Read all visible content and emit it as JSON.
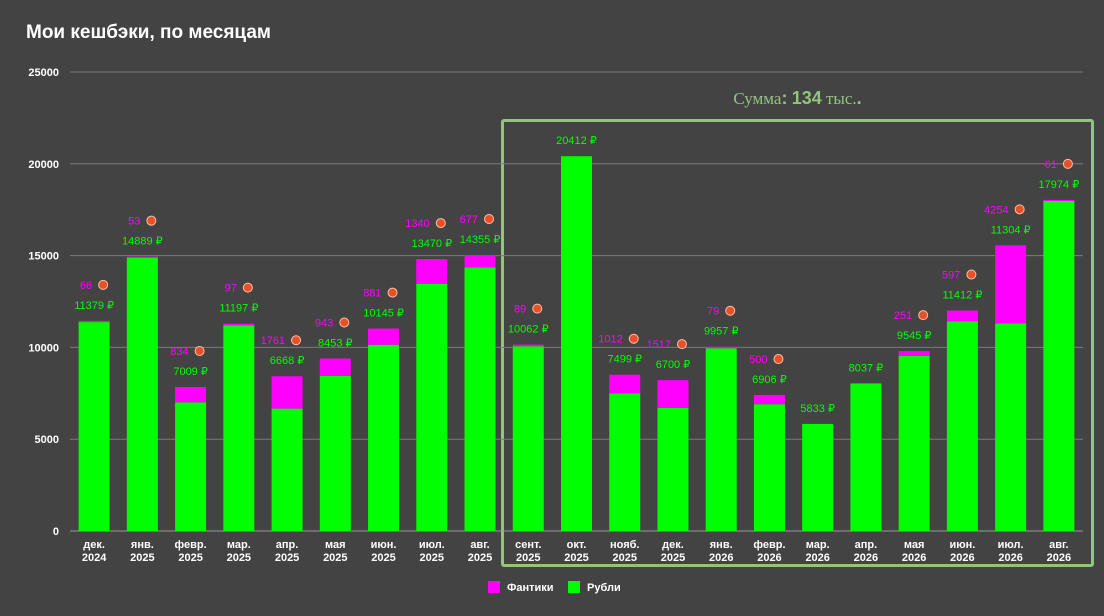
{
  "title": "Мои кешбэки, по месяцам",
  "annotation": {
    "prefix": "Сумма",
    "colon": ":",
    "value": "134",
    "suffix": "тыс."
  },
  "colors": {
    "background": "#434343",
    "grid": "#7a7a7a",
    "text": "#ffffff",
    "rubles": "#00ff00",
    "fantiki": "#ff00ff",
    "coin": "#e8502a",
    "box": "#93c47d"
  },
  "chart_data": {
    "type": "bar",
    "stacked": true,
    "title": "Мои кешбэки, по месяцам",
    "categories": [
      [
        "дек.",
        "2024"
      ],
      [
        "янв.",
        "2025"
      ],
      [
        "февр.",
        "2025"
      ],
      [
        "мар.",
        "2025"
      ],
      [
        "апр.",
        "2025"
      ],
      [
        "мая",
        "2025"
      ],
      [
        "июн.",
        "2025"
      ],
      [
        "июл.",
        "2025"
      ],
      [
        "авг.",
        "2025"
      ],
      [
        "сент.",
        "2025"
      ],
      [
        "окт.",
        "2025"
      ],
      [
        "нояб.",
        "2025"
      ],
      [
        "дек.",
        "2025"
      ],
      [
        "янв.",
        "2026"
      ],
      [
        "февр.",
        "2026"
      ],
      [
        "мар.",
        "2026"
      ],
      [
        "апр.",
        "2026"
      ],
      [
        "мая",
        "2026"
      ],
      [
        "июн.",
        "2026"
      ],
      [
        "июл.",
        "2026"
      ],
      [
        "авг.",
        "2026"
      ]
    ],
    "series": [
      {
        "name": "Рубли",
        "color": "#00ff00",
        "values": [
          11379,
          14889,
          7009,
          11197,
          6668,
          8453,
          10145,
          13470,
          14355,
          10062,
          20412,
          7499,
          6700,
          9957,
          6906,
          5833,
          8037,
          9545,
          11412,
          11304,
          17974
        ],
        "labels": [
          "11379 ₽",
          "14889 ₽",
          "7009 ₽",
          "11197 ₽",
          "6668 ₽",
          "8453 ₽",
          "10145 ₽",
          "13470 ₽",
          "14355 ₽",
          "10062 ₽",
          "20412 ₽",
          "7499 ₽",
          "6700 ₽",
          "9957 ₽",
          "6906 ₽",
          "5833 ₽",
          "8037 ₽",
          "9545 ₽",
          "11412 ₽",
          "11304 ₽",
          "17974 ₽"
        ]
      },
      {
        "name": "Фантики",
        "color": "#ff00ff",
        "values": [
          66,
          53,
          834,
          97,
          1761,
          943,
          881,
          1340,
          677,
          89,
          0,
          1012,
          1517,
          79,
          500,
          0,
          0,
          251,
          597,
          4254,
          61
        ],
        "labels": [
          "66",
          "53",
          "834",
          "97",
          "1761",
          "943",
          "881",
          "1340",
          "677",
          "89",
          "",
          "1012",
          "1517",
          "79",
          "500",
          "",
          "",
          "251",
          "597",
          "4254",
          "61"
        ]
      }
    ],
    "ylim": [
      0,
      25000
    ],
    "yticks": [
      "0",
      "5000",
      "10000",
      "15000",
      "20000",
      "25000"
    ],
    "grid": true,
    "legend": "bottom"
  }
}
